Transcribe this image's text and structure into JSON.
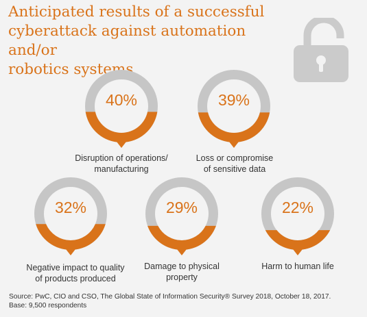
{
  "title_lines": [
    "Anticipated results of a successful",
    "cyberattack against automation and/or",
    "robotics systems"
  ],
  "colors": {
    "accent": "#d9731a",
    "ring": "#c6c6c6",
    "lock": "#cbcbcb",
    "background": "#f3f3f3"
  },
  "icon": "padlock-icon",
  "chart_data": {
    "type": "donut",
    "unit": "%",
    "items": [
      {
        "value": 40,
        "label_text": "40%",
        "label_lines": [
          "Disruption of operations/",
          "manufacturing"
        ]
      },
      {
        "value": 39,
        "label_text": "39%",
        "label_lines": [
          "Loss or compromise",
          "of sensitive data"
        ]
      },
      {
        "value": 32,
        "label_text": "32%",
        "label_lines": [
          "Negative impact to quality",
          "of products produced"
        ]
      },
      {
        "value": 29,
        "label_text": "29%",
        "label_lines": [
          "Damage to physical",
          "property"
        ]
      },
      {
        "value": 22,
        "label_text": "22%",
        "label_lines": [
          "Harm to human life"
        ]
      }
    ]
  },
  "source_lines": [
    "Source: PwC, CIO and CSO, The Global State of Information Security® Survey 2018, October 18, 2017.",
    "Base: 9,500 respondents"
  ]
}
